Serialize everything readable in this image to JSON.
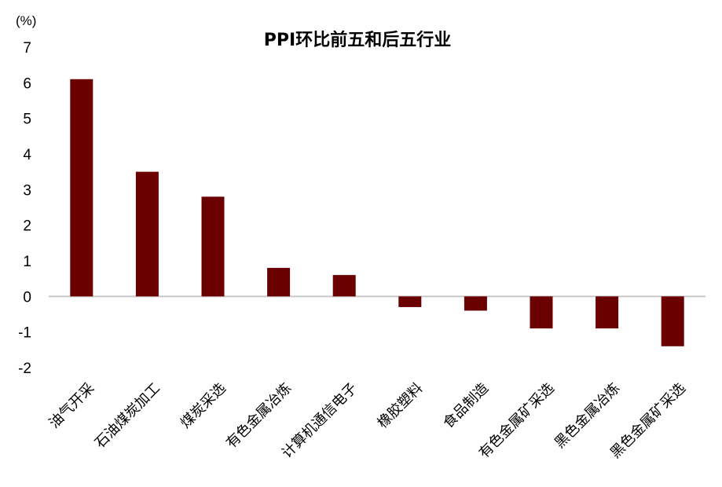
{
  "chart_data": {
    "type": "bar",
    "title": "PPI环比前五和后五行业",
    "ylabel": "(%)",
    "xlabel": "",
    "ylim": [
      -2,
      7
    ],
    "yticks": [
      -2,
      -1,
      0,
      1,
      2,
      3,
      4,
      5,
      6,
      7
    ],
    "grid": false,
    "legend": "none",
    "bar_color": "#6B0000",
    "zero_line_color": "#C8C8C8",
    "categories": [
      "油气开采",
      "石油煤炭加工",
      "煤炭采选",
      "有色金属冶炼",
      "计算机通信电子",
      "橡胶塑料",
      "食品制造",
      "有色金属矿采选",
      "黑色金属冶炼",
      "黑色金属矿采选"
    ],
    "values": [
      6.1,
      3.5,
      2.8,
      0.8,
      0.6,
      -0.3,
      -0.4,
      -0.9,
      -0.9,
      -1.4
    ]
  }
}
